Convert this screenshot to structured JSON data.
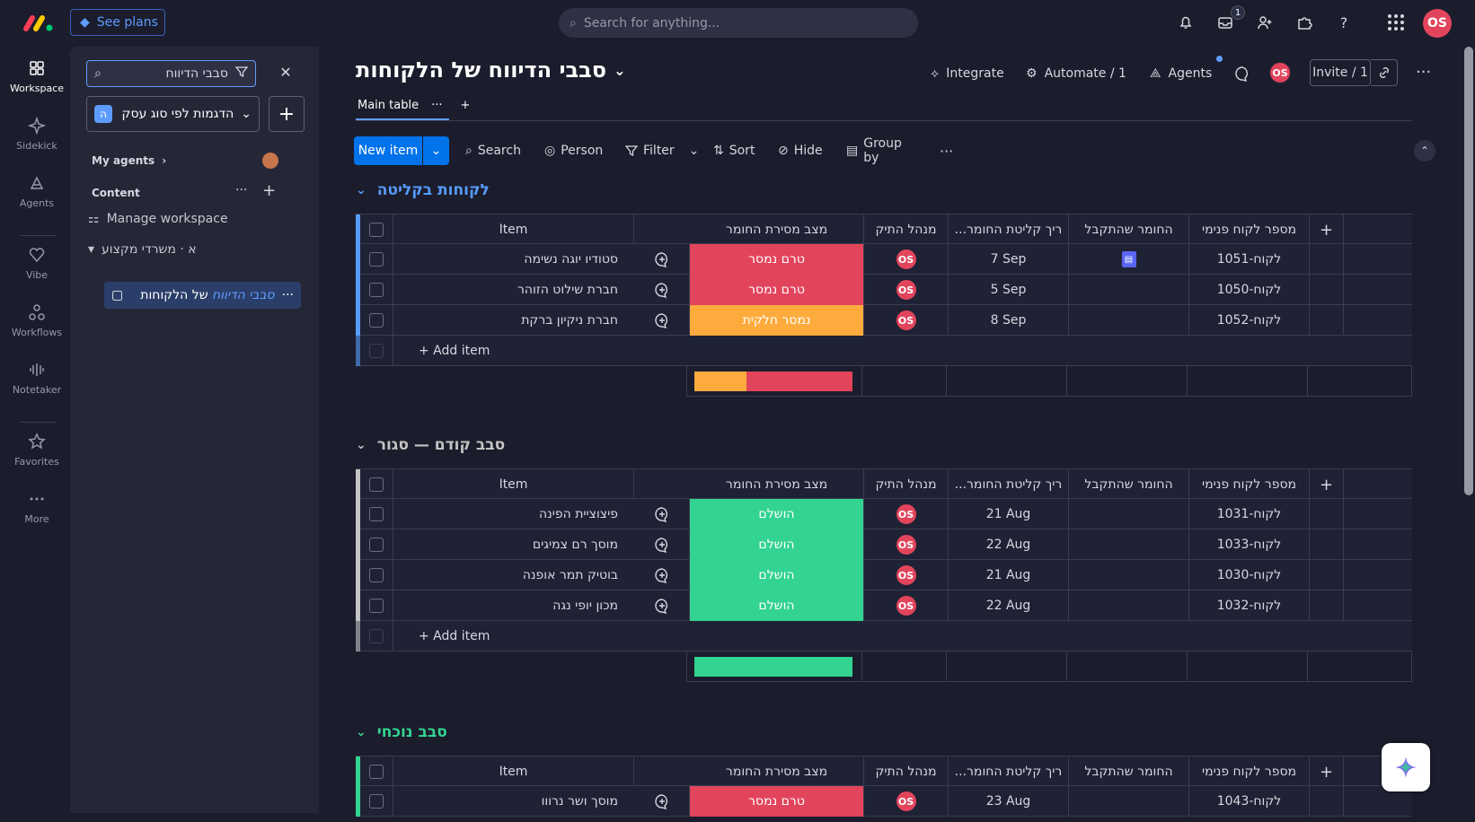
{
  "topbar": {
    "see_plans": "See plans",
    "search_placeholder": "Search for anything...",
    "inbox_badge": "1",
    "user_initials": "OS"
  },
  "rail": {
    "items": [
      {
        "label": "Workspace",
        "icon": "workspace-icon"
      },
      {
        "label": "Sidekick",
        "icon": "sidekick-icon"
      },
      {
        "label": "Agents",
        "icon": "agents-icon"
      },
      {
        "label": "Vibe",
        "icon": "vibe-icon"
      },
      {
        "label": "Workflows",
        "icon": "workflows-icon"
      },
      {
        "label": "Notetaker",
        "icon": "notetaker-icon"
      },
      {
        "label": "Favorites",
        "icon": "star-icon"
      },
      {
        "label": "More",
        "icon": "more-icon"
      }
    ]
  },
  "panel": {
    "search_value": "סבבי הדיווח",
    "workspace_badge": "ה",
    "workspace_name": "הדגמות לפי סוג עסק",
    "my_agents": "My agents",
    "content": "Content",
    "manage_workspace": "Manage workspace",
    "folder": "א · משרדי מקצוע",
    "board_item_plain": "של הלקוחות",
    "board_item_highlight": "סבבי הדיווח"
  },
  "board": {
    "title": "סבבי הדיווח של הלקוחות",
    "integrate": "Integrate",
    "automate": "Automate / 1",
    "agents": "Agents",
    "invite": "Invite / 1",
    "user_initials": "OS",
    "tab_main": "Main table",
    "toolbar": {
      "new_item": "New item",
      "search": "Search",
      "person": "Person",
      "filter": "Filter",
      "sort": "Sort",
      "hide": "Hide",
      "group_by": "Group by"
    }
  },
  "columns": {
    "item": "Item",
    "status": "מצב מסירת החומר",
    "owner": "מנהל התיק",
    "date": "...ריך קליטת החומר",
    "received": "החומר שהתקבל",
    "client_id": "מספר לקוח פנימי"
  },
  "add_item": "+ Add item",
  "groups": [
    {
      "title": "לקוחות בקליטה",
      "color": "#579bfc",
      "rows": [
        {
          "name": "סטודיו יוגה נשימה",
          "status": "טרם נמסר",
          "status_color": "#e2445c",
          "owner": "OS",
          "date": "7 Sep",
          "file": "file-icon",
          "client_id": "לקוח-1051"
        },
        {
          "name": "חברת שילוט הזוהר",
          "status": "טרם נמסר",
          "status_color": "#e2445c",
          "owner": "OS",
          "date": "5 Sep",
          "file": "",
          "client_id": "לקוח-1050"
        },
        {
          "name": "חברת ניקיון ברקת",
          "status": "נמסר חלקית",
          "status_color": "#fdab3d",
          "owner": "OS",
          "date": "8 Sep",
          "file": "",
          "client_id": "לקוח-1052"
        }
      ],
      "summary": [
        {
          "color": "#fdab3d",
          "fraction": 0.33
        },
        {
          "color": "#e2445c",
          "fraction": 0.67
        }
      ]
    },
    {
      "title": "סבב קודם — סגור",
      "color": "#c4c4c4",
      "rows": [
        {
          "name": "פיצוציית הפינה",
          "status": "הושלם",
          "status_color": "#33d391",
          "owner": "OS",
          "date": "21 Aug",
          "file": "",
          "client_id": "לקוח-1031"
        },
        {
          "name": "מוסך רם צמיגים",
          "status": "הושלם",
          "status_color": "#33d391",
          "owner": "OS",
          "date": "22 Aug",
          "file": "",
          "client_id": "לקוח-1033"
        },
        {
          "name": "בוטיק תמר אופנה",
          "status": "הושלם",
          "status_color": "#33d391",
          "owner": "OS",
          "date": "21 Aug",
          "file": "",
          "client_id": "לקוח-1030"
        },
        {
          "name": "מכון יופי נגה",
          "status": "הושלם",
          "status_color": "#33d391",
          "owner": "OS",
          "date": "22 Aug",
          "file": "",
          "client_id": "לקוח-1032"
        }
      ],
      "summary": [
        {
          "color": "#33d391",
          "fraction": 1
        }
      ]
    },
    {
      "title": "סבב נוכחי",
      "color": "#33d391",
      "rows": [
        {
          "name": "מוסך ושר נרווו",
          "status": "טרם נמסר",
          "status_color": "#e2445c",
          "owner": "OS",
          "date": "23 Aug",
          "file": "",
          "client_id": "לקוח-1043"
        }
      ],
      "summary": []
    }
  ]
}
